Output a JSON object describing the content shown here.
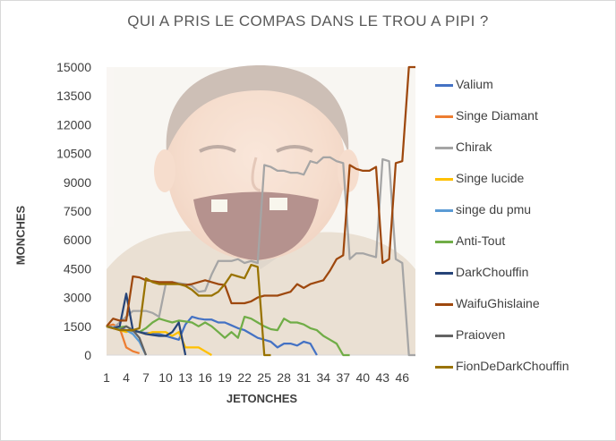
{
  "chart_data": {
    "type": "line",
    "title": "QUI A PRIS LE COMPAS DANS LE TROU A PIPI ?",
    "xlabel": "JETONCHES",
    "ylabel": "MONCHES",
    "ylim": [
      0,
      15000
    ],
    "yticks": [
      "0",
      "1500",
      "3000",
      "4500",
      "6000",
      "7500",
      "9000",
      "10500",
      "12000",
      "13500",
      "15000"
    ],
    "xtick_labels": [
      "1",
      "4",
      "7",
      "10",
      "13",
      "16",
      "19",
      "22",
      "25",
      "28",
      "31",
      "34",
      "37",
      "40",
      "43",
      "46"
    ],
    "x_range": [
      1,
      48
    ],
    "grid": false,
    "legend_position": "right",
    "background_image": "laughing-man-photo",
    "series": [
      {
        "name": "Valium",
        "color": "#4472c4",
        "x": [
          1,
          2,
          3,
          4,
          5,
          6,
          7,
          8,
          9,
          10,
          11,
          12,
          13,
          14,
          15,
          16,
          17,
          18,
          19,
          20,
          21,
          22,
          23,
          24,
          25,
          26,
          27,
          28,
          29,
          30,
          31,
          32,
          33
        ],
        "values": [
          1500,
          1400,
          1350,
          1300,
          1250,
          1200,
          1150,
          1150,
          1100,
          1000,
          900,
          800,
          1600,
          2000,
          1900,
          1850,
          1850,
          1700,
          1700,
          1550,
          1400,
          1300,
          1100,
          900,
          800,
          700,
          400,
          600,
          600,
          500,
          700,
          600,
          0
        ]
      },
      {
        "name": "Singe Diamant",
        "color": "#ed7d31",
        "x": [
          1,
          2,
          3,
          4,
          5,
          6
        ],
        "values": [
          1500,
          1600,
          1400,
          400,
          200,
          100
        ]
      },
      {
        "name": "Chirak",
        "color": "#a5a5a5",
        "x": [
          1,
          2,
          3,
          4,
          5,
          6,
          7,
          8,
          9,
          10,
          11,
          12,
          13,
          14,
          15,
          16,
          17,
          18,
          19,
          20,
          21,
          22,
          23,
          24,
          25,
          26,
          27,
          28,
          29,
          30,
          31,
          32,
          33,
          34,
          35,
          36,
          37,
          38,
          39,
          40,
          41,
          42,
          43,
          44,
          45,
          46,
          47,
          48
        ],
        "values": [
          1500,
          1400,
          1700,
          2000,
          2300,
          2300,
          2300,
          2200,
          2000,
          3700,
          3800,
          3750,
          3700,
          3600,
          3300,
          3350,
          4200,
          4900,
          4900,
          4900,
          5000,
          4800,
          4900,
          4800,
          9900,
          9800,
          9600,
          9600,
          9500,
          9500,
          9400,
          10100,
          10000,
          10300,
          10300,
          10100,
          10000,
          5000,
          5300,
          5300,
          5200,
          5100,
          10200,
          10100,
          5000,
          4800,
          0,
          0
        ]
      },
      {
        "name": "Singe lucide",
        "color": "#ffc000",
        "x": [
          1,
          2,
          3,
          4,
          5,
          6,
          7,
          8,
          9,
          10,
          11,
          12,
          13,
          14,
          15,
          16,
          17
        ],
        "values": [
          1500,
          1400,
          1300,
          1200,
          1300,
          1200,
          1100,
          1200,
          1200,
          1200,
          1000,
          1200,
          400,
          400,
          400,
          200,
          0
        ]
      },
      {
        "name": "singe du pmu",
        "color": "#5b9bd5",
        "x": [
          1,
          2,
          3,
          4,
          5,
          6,
          7
        ],
        "values": [
          1500,
          1450,
          1400,
          1300,
          1100,
          700,
          0
        ]
      },
      {
        "name": "Anti-Tout",
        "color": "#70ad47",
        "x": [
          1,
          2,
          3,
          4,
          5,
          6,
          7,
          8,
          9,
          10,
          11,
          12,
          13,
          14,
          15,
          16,
          17,
          18,
          19,
          20,
          21,
          22,
          23,
          24,
          25,
          26,
          27,
          28,
          29,
          30,
          31,
          32,
          33,
          34,
          35,
          36,
          37,
          38
        ],
        "values": [
          1500,
          1400,
          1450,
          1500,
          1300,
          1200,
          1400,
          1700,
          1900,
          1800,
          1700,
          1800,
          1750,
          1700,
          1500,
          1700,
          1500,
          1200,
          900,
          1200,
          900,
          2000,
          1900,
          1700,
          1500,
          1350,
          1300,
          1900,
          1700,
          1700,
          1600,
          1400,
          1300,
          1000,
          800,
          600,
          0,
          0
        ]
      },
      {
        "name": "DarkChouffin",
        "color": "#264478",
        "x": [
          1,
          2,
          3,
          4,
          5,
          6,
          7,
          8,
          9,
          10,
          11,
          12,
          13
        ],
        "values": [
          1500,
          1400,
          1500,
          3200,
          1300,
          1200,
          1100,
          1050,
          1000,
          1000,
          1200,
          1700,
          0
        ]
      },
      {
        "name": "WaifuGhislaine",
        "color": "#9e480e",
        "x": [
          1,
          2,
          3,
          4,
          5,
          6,
          7,
          8,
          9,
          10,
          11,
          12,
          13,
          14,
          15,
          16,
          17,
          18,
          19,
          20,
          21,
          22,
          23,
          24,
          25,
          26,
          27,
          28,
          29,
          30,
          31,
          32,
          33,
          34,
          35,
          36,
          37,
          38,
          39,
          40,
          41,
          42,
          43,
          44,
          45,
          46,
          47,
          48
        ],
        "values": [
          1500,
          1900,
          1800,
          1800,
          4100,
          4050,
          3900,
          3850,
          3800,
          3800,
          3800,
          3700,
          3650,
          3700,
          3800,
          3900,
          3800,
          3700,
          3650,
          2700,
          2700,
          2700,
          2800,
          3000,
          3100,
          3100,
          3100,
          3200,
          3300,
          3700,
          3500,
          3700,
          3800,
          3900,
          4400,
          5000,
          5200,
          9900,
          9700,
          9600,
          9600,
          9800,
          4800,
          5000,
          10000,
          10100,
          15000,
          15000
        ]
      },
      {
        "name": "Praioven",
        "color": "#636363",
        "x": [
          1,
          2,
          3,
          4,
          5,
          6,
          7
        ],
        "values": [
          1500,
          1400,
          1300,
          1500,
          1300,
          900,
          0
        ]
      },
      {
        "name": "FionDeDarkChouffin",
        "color": "#997300",
        "x": [
          1,
          2,
          3,
          4,
          5,
          6,
          7,
          8,
          9,
          10,
          11,
          12,
          13,
          14,
          15,
          16,
          17,
          18,
          19,
          20,
          21,
          22,
          23,
          24,
          25,
          26
        ],
        "values": [
          1500,
          1400,
          1300,
          1300,
          1300,
          1400,
          4000,
          3800,
          3700,
          3700,
          3700,
          3700,
          3600,
          3400,
          3100,
          3100,
          3100,
          3300,
          3700,
          4200,
          4100,
          4000,
          4700,
          4600,
          0,
          0
        ]
      }
    ]
  }
}
